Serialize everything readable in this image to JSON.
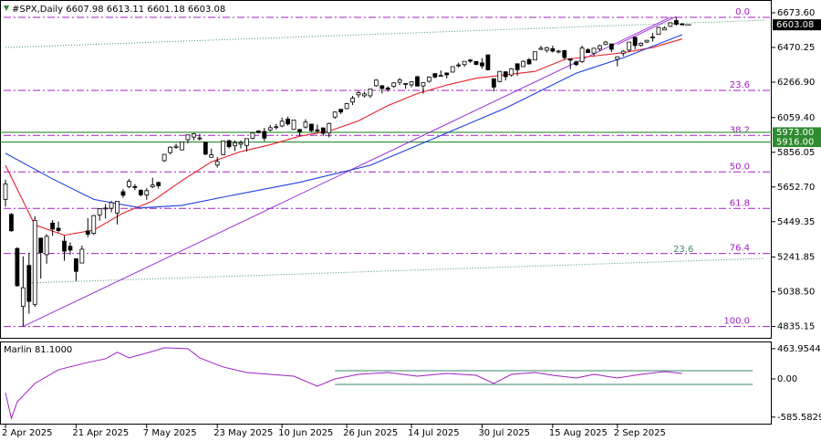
{
  "chart_data": {
    "type": "candlestick",
    "title": "#SPX,Daily 6607.98 6613.11 6601.18 6603.08",
    "categories": [
      "2 Apr 2025",
      null,
      null,
      null,
      null,
      null,
      null,
      null,
      null,
      null,
      null,
      null,
      "21 Apr 2025",
      null,
      null,
      null,
      null,
      null,
      null,
      null,
      null,
      null,
      null,
      null,
      "7 May 2025",
      null,
      null,
      null,
      null,
      null,
      null,
      null,
      null,
      null,
      null,
      null,
      "23 May 2025",
      null,
      null,
      null,
      null,
      null,
      null,
      null,
      null,
      null,
      null,
      "10 Jun 2025",
      null,
      null,
      null,
      null,
      null,
      null,
      null,
      null,
      null,
      null,
      "26 Jun 2025",
      null,
      null,
      null,
      null,
      null,
      null,
      null,
      null,
      null,
      null,
      "14 Jul 2025",
      null,
      null,
      null,
      null,
      null,
      null,
      null,
      null,
      null,
      null,
      null,
      "30 Jul 2025",
      null,
      null,
      null,
      null,
      null,
      null,
      null,
      null,
      null,
      null,
      null,
      "15 Aug 2025",
      null,
      null,
      null,
      null,
      null,
      null,
      null,
      null,
      null,
      null,
      "2 Sep 2025",
      null,
      null,
      null,
      null,
      null,
      null,
      null,
      null,
      null,
      null,
      null
    ],
    "open": [
      5580,
      5492,
      5292,
      4953,
      5193,
      4965,
      5353,
      5256,
      5441,
      5411,
      5335,
      5305,
      5232,
      5207,
      5395,
      5381,
      5489,
      5529,
      5528,
      5500,
      5625,
      5655,
      5655,
      5633,
      5606,
      5654,
      5679,
      5807,
      5854,
      5885,
      5870,
      5930,
      5945,
      5940,
      5915,
      5827,
      5781,
      5842,
      5924,
      5894,
      5903,
      5896,
      5938,
      5981,
      5978,
      5987,
      6005,
      6010,
      6050,
      5990,
      5990,
      6004,
      6021,
      5987,
      5999,
      5969,
      6062,
      6108,
      6112,
      6150,
      6193,
      6187,
      6187,
      6246,
      6246,
      6233,
      6242,
      6266,
      6255,
      6251,
      6299,
      6245,
      6272,
      6317,
      6304,
      6321,
      6326,
      6368,
      6370,
      6397,
      6388,
      6380,
      6427,
      6287,
      6271,
      6328,
      6309,
      6375,
      6358,
      6399,
      6397,
      6459,
      6454,
      6463,
      6445,
      6452,
      6404,
      6386,
      6388,
      6457,
      6437,
      6461,
      6488,
      6491,
      6401,
      6436,
      6455,
      6530,
      6483,
      6502,
      6531,
      6547,
      6573,
      6594,
      6628,
      6607.98
    ],
    "high": [
      5695,
      5500,
      5300,
      5246,
      5267,
      5481,
      5353,
      5376,
      5459,
      5450,
      5367,
      5328,
      5232,
      5309,
      5470,
      5489,
      5528,
      5553,
      5571,
      5570,
      5640,
      5700,
      5670,
      5640,
      5647,
      5707,
      5684,
      5846,
      5891,
      5906,
      5920,
      5959,
      5969,
      5963,
      5916,
      5878,
      5829,
      5924,
      5930,
      5925,
      5925,
      5937,
      5973,
      5985,
      5999,
      6016,
      6022,
      6059,
      6065,
      6046,
      5990,
      6050,
      6023,
      6018,
      6000,
      6030,
      6095,
      6108,
      6146,
      6187,
      6215,
      6210,
      6228,
      6284,
      6249,
      6242,
      6266,
      6291,
      6262,
      6272,
      6303,
      6265,
      6301,
      6320,
      6336,
      6322,
      6360,
      6381,
      6390,
      6402,
      6390,
      6408,
      6428,
      6288,
      6330,
      6328,
      6350,
      6375,
      6395,
      6409,
      6446,
      6480,
      6475,
      6481,
      6456,
      6456,
      6404,
      6393,
      6481,
      6466,
      6468,
      6487,
      6509,
      6491,
      6416,
      6454,
      6502,
      6533,
      6500,
      6515,
      6555,
      6592,
      6594,
      6619,
      6645,
      6613.11
    ],
    "low": [
      5538,
      5390,
      5069,
      4835,
      4910,
      4950,
      5115,
      5203,
      5367,
      5386,
      5220,
      5255,
      5101,
      5207,
      5358,
      5371,
      5455,
      5468,
      5505,
      5433,
      5590,
      5646,
      5634,
      5597,
      5578,
      5646,
      5644,
      5800,
      5845,
      5876,
      5867,
      5908,
      5926,
      5925,
      5840,
      5827,
      5767,
      5842,
      5878,
      5863,
      5878,
      5861,
      5932,
      5967,
      5921,
      5978,
      5990,
      6003,
      6012,
      5987,
      5952,
      5995,
      5975,
      5971,
      5952,
      5943,
      6053,
      6080,
      6108,
      6133,
      6177,
      6178,
      6175,
      6240,
      6201,
      6211,
      6232,
      6250,
      6228,
      6237,
      6244,
      6201,
      6264,
      6290,
      6301,
      6289,
      6323,
      6353,
      6357,
      6381,
      6366,
      6346,
      6336,
      6212,
      6265,
      6277,
      6300,
      6304,
      6358,
      6370,
      6397,
      6455,
      6441,
      6441,
      6436,
      6400,
      6343,
      6361,
      6380,
      6438,
      6421,
      6450,
      6484,
      6443,
      6360,
      6418,
      6444,
      6460,
      6475,
      6496,
      6506,
      6544,
      6573,
      6590,
      6598,
      6601.18
    ],
    "close": [
      5670,
      5396,
      5074,
      5062,
      4982,
      5457,
      5268,
      5363,
      5406,
      5397,
      5276,
      5283,
      5158,
      5288,
      5376,
      5485,
      5525,
      5529,
      5561,
      5569,
      5604,
      5686,
      5650,
      5607,
      5631,
      5664,
      5660,
      5844,
      5886,
      5892,
      5917,
      5958,
      5964,
      5940,
      5845,
      5842,
      5802,
      5922,
      5889,
      5912,
      5912,
      5936,
      5970,
      5971,
      5939,
      6000,
      6006,
      6038,
      6022,
      6045,
      5977,
      6033,
      5983,
      5981,
      5967,
      6025,
      6092,
      6092,
      6141,
      6173,
      6205,
      6198,
      6227,
      6279,
      6230,
      6226,
      6263,
      6280,
      6259,
      6269,
      6244,
      6264,
      6297,
      6297,
      6306,
      6310,
      6358,
      6363,
      6389,
      6390,
      6371,
      6362,
      6339,
      6238,
      6330,
      6299,
      6345,
      6340,
      6389,
      6374,
      6445,
      6466,
      6469,
      6449,
      6449,
      6411,
      6396,
      6370,
      6467,
      6440,
      6466,
      6481,
      6502,
      6460,
      6416,
      6448,
      6502,
      6482,
      6495,
      6512,
      6532,
      6588,
      6584,
      6615,
      6606,
      6603.08
    ],
    "ylim": [
      4768.6,
      6748.5
    ],
    "yticks": [
      {
        "value": 6673.6,
        "label": "6673.60"
      },
      6470.25,
      {
        "value": 6266.9,
        "label": "6266.90"
      },
      {
        "value": 6059.4,
        "label": "6059.40"
      },
      5856.05,
      {
        "value": 5652.7,
        "label": "5652.70"
      },
      5449.35,
      5241.85,
      {
        "value": 5038.5,
        "label": "5038.50"
      },
      4835.15
    ],
    "moving_averages": [
      {
        "color": "#e8202a",
        "x": [
          0,
          5,
          10,
          15,
          20,
          25,
          30,
          35,
          40,
          45,
          50,
          55,
          60,
          65,
          70,
          75,
          80,
          85,
          90,
          95,
          100,
          105,
          110,
          115
        ],
        "values": [
          5780,
          5430,
          5370,
          5400,
          5500,
          5570,
          5690,
          5800,
          5860,
          5900,
          5950,
          5980,
          6040,
          6130,
          6200,
          6250,
          6290,
          6310,
          6330,
          6400,
          6420,
          6440,
          6470,
          6520
        ]
      },
      {
        "color": "#1f3fe0",
        "x": [
          0,
          8,
          15,
          23,
          30,
          38,
          50,
          62,
          73,
          85,
          97,
          105,
          115
        ],
        "values": [
          5850,
          5700,
          5580,
          5530,
          5545,
          5600,
          5680,
          5780,
          5940,
          6115,
          6320,
          6410,
          6545
        ]
      }
    ],
    "trendlines": [
      {
        "color": "#9b30d9",
        "style": "solid",
        "x": [
          3,
          113
        ],
        "values": [
          4835,
          6647
        ]
      },
      {
        "color": "#9b30d9",
        "style": "solid",
        "x": [
          104,
          114
        ],
        "values": [
          6488,
          6652
        ]
      },
      {
        "color": "#3a8a6a",
        "style": "dotted",
        "x": [
          0,
          129
        ],
        "values": [
          6470,
          6630
        ]
      },
      {
        "color": "#3a8a6a",
        "style": "dotted",
        "x": [
          4,
          129
        ],
        "values": [
          5090,
          5234
        ],
        "label": "23.6"
      }
    ],
    "fib_color": "#a020c0",
    "fib_levels": [
      {
        "label": "0.0",
        "value": 6647
      },
      {
        "label": "23.6",
        "value": 6219
      },
      {
        "label": "38.2",
        "value": 5955
      },
      {
        "label": "50.0",
        "value": 5741
      },
      {
        "label": "61.8",
        "value": 5527
      },
      {
        "label": "76.4",
        "value": 5263
      },
      {
        "label": "100.0",
        "value": 4835
      }
    ],
    "levels": [
      {
        "value": 5973,
        "label": "5973.00"
      },
      {
        "value": 5916,
        "label": "5916.00"
      }
    ],
    "level_color": "#2e8b2e",
    "oscillator": {
      "title": "Marlin 81.1000",
      "color": "#a020c0",
      "ylim": [
        -700,
        560
      ],
      "yticks": [
        463.9544,
        {
          "value": 0,
          "label": "0.00"
        },
        -585.5829
      ],
      "x": [
        0,
        1,
        2,
        5,
        9,
        14,
        17,
        19,
        21,
        25,
        27,
        31,
        33,
        37,
        41,
        45,
        49,
        53,
        56,
        60,
        65,
        70,
        75,
        80,
        83,
        86,
        90,
        93,
        97,
        100,
        104,
        108,
        112,
        115
      ],
      "values": [
        -211,
        -605,
        -352,
        -70,
        141,
        253,
        309,
        408,
        323,
        422,
        478,
        464,
        323,
        183,
        98,
        70,
        42,
        -112,
        0,
        70,
        98,
        42,
        84,
        56,
        -70,
        70,
        98,
        56,
        14,
        70,
        14,
        70,
        112,
        84
      ],
      "channel_color": "#3a8a6a",
      "channel_x": [
        56,
        127
      ],
      "channel": [
        126,
        -84
      ]
    }
  }
}
